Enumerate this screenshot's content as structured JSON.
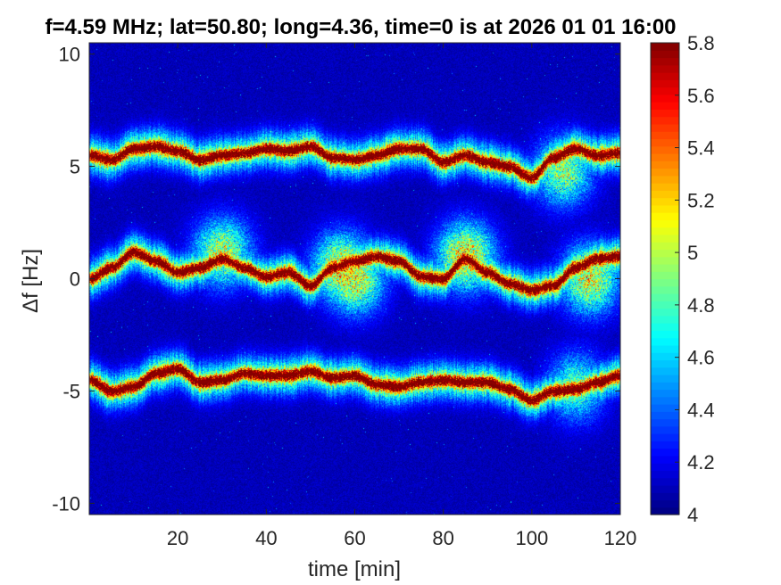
{
  "chart_data": {
    "type": "heatmap",
    "title": "f=4.59 MHz;  lat=50.80; long=4.36, time=0 is at 2026 01 01 16:00",
    "xlabel": "time [min]",
    "ylabel": "Δf [Hz]",
    "xlim": [
      0,
      120
    ],
    "ylim": [
      -10.5,
      10.5
    ],
    "xticks": [
      20,
      40,
      60,
      80,
      100,
      120
    ],
    "xtick_labels": [
      "20",
      "40",
      "60",
      "80",
      "100",
      "120"
    ],
    "yticks": [
      -10,
      -5,
      0,
      5,
      10
    ],
    "ytick_labels": [
      "-10",
      "-5",
      "0",
      "5",
      "10"
    ],
    "colormap": "jet",
    "clim": [
      4,
      5.8
    ],
    "colorbar": {
      "location": "right",
      "ticks": [
        4,
        4.2,
        4.4,
        4.6,
        4.8,
        5,
        5.2,
        5.4,
        5.6,
        5.8
      ],
      "tick_labels": [
        "4",
        "4.2",
        "4.4",
        "4.6",
        "4.8",
        "5",
        "5.2",
        "5.4",
        "5.6",
        "5.8"
      ]
    },
    "grid": false,
    "background_level": 4.1,
    "traces": [
      {
        "band": "upper",
        "points": [
          [
            0,
            5.5
          ],
          [
            5,
            5.3
          ],
          [
            10,
            5.8
          ],
          [
            15,
            5.9
          ],
          [
            20,
            5.7
          ],
          [
            25,
            5.3
          ],
          [
            30,
            5.5
          ],
          [
            35,
            5.6
          ],
          [
            40,
            5.8
          ],
          [
            45,
            5.7
          ],
          [
            50,
            5.9
          ],
          [
            55,
            5.4
          ],
          [
            60,
            5.3
          ],
          [
            65,
            5.5
          ],
          [
            70,
            5.8
          ],
          [
            75,
            5.8
          ],
          [
            80,
            5.2
          ],
          [
            85,
            5.5
          ],
          [
            90,
            5.2
          ],
          [
            95,
            5.0
          ],
          [
            100,
            4.5
          ],
          [
            105,
            5.4
          ],
          [
            110,
            5.8
          ],
          [
            115,
            5.5
          ],
          [
            120,
            5.6
          ]
        ]
      },
      {
        "band": "middle",
        "points": [
          [
            0,
            0
          ],
          [
            5,
            0.5
          ],
          [
            10,
            1.2
          ],
          [
            15,
            0.8
          ],
          [
            20,
            0.3
          ],
          [
            25,
            0.5
          ],
          [
            30,
            0.9
          ],
          [
            35,
            0.5
          ],
          [
            40,
            0.1
          ],
          [
            45,
            0.3
          ],
          [
            50,
            -0.3
          ],
          [
            55,
            0.5
          ],
          [
            60,
            0.8
          ],
          [
            65,
            1.0
          ],
          [
            70,
            0.8
          ],
          [
            75,
            0.1
          ],
          [
            80,
            0.0
          ],
          [
            85,
            0.9
          ],
          [
            90,
            0.3
          ],
          [
            95,
            -0.2
          ],
          [
            100,
            -0.5
          ],
          [
            105,
            -0.3
          ],
          [
            110,
            0.5
          ],
          [
            115,
            0.9
          ],
          [
            120,
            1.0
          ]
        ]
      },
      {
        "band": "lower",
        "points": [
          [
            0,
            -4.5
          ],
          [
            5,
            -5.0
          ],
          [
            10,
            -4.8
          ],
          [
            15,
            -4.2
          ],
          [
            20,
            -4.0
          ],
          [
            25,
            -4.6
          ],
          [
            30,
            -4.5
          ],
          [
            35,
            -4.2
          ],
          [
            40,
            -4.3
          ],
          [
            45,
            -4.3
          ],
          [
            50,
            -4.1
          ],
          [
            55,
            -4.4
          ],
          [
            60,
            -4.3
          ],
          [
            65,
            -4.7
          ],
          [
            70,
            -4.8
          ],
          [
            75,
            -4.6
          ],
          [
            80,
            -4.5
          ],
          [
            85,
            -4.6
          ],
          [
            90,
            -4.6
          ],
          [
            95,
            -4.9
          ],
          [
            100,
            -5.4
          ],
          [
            105,
            -5.0
          ],
          [
            110,
            -4.9
          ],
          [
            115,
            -4.6
          ],
          [
            120,
            -4.3
          ]
        ]
      }
    ],
    "bursts": [
      {
        "x": 57,
        "y": 0.5,
        "intensity": 5.5
      },
      {
        "x": 85,
        "y": 1.0,
        "intensity": 5.5
      },
      {
        "x": 113,
        "y": 0.0,
        "intensity": 5.4
      },
      {
        "x": 107,
        "y": 4.8,
        "intensity": 5.2
      },
      {
        "x": 30,
        "y": 1.2,
        "intensity": 5.3
      },
      {
        "x": 60,
        "y": 0.0,
        "intensity": 5.4
      },
      {
        "x": 110,
        "y": -4.8,
        "intensity": 5.0
      }
    ]
  }
}
